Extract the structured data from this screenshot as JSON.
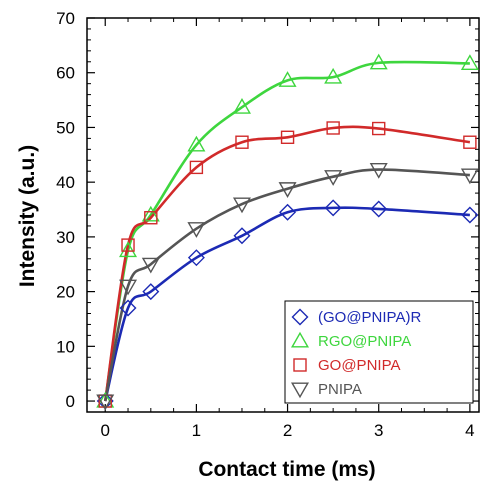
{
  "chart_data": {
    "type": "scatter",
    "title": "",
    "xlabel": "Contact time (ms)",
    "ylabel": "Intensity (a.u.)",
    "xlim": [
      -0.2,
      4.1
    ],
    "ylim": [
      -2,
      70
    ],
    "xticks": [
      0,
      1,
      2,
      3,
      4
    ],
    "yticks": [
      0,
      10,
      20,
      30,
      40,
      50,
      60,
      70
    ],
    "x": [
      0,
      0.25,
      0.5,
      1,
      1.5,
      2,
      2.5,
      3,
      4
    ],
    "grid": false,
    "legend_position": "bottom-right",
    "series": [
      {
        "name": "(GO@PNIPA)R",
        "marker": "diamond",
        "color": "#1c2ab4",
        "values": [
          0,
          17,
          20,
          26.2,
          30.2,
          34.5,
          35.3,
          35.1,
          34
        ]
      },
      {
        "name": "RGO@PNIPA",
        "marker": "triangle-up",
        "color": "#3ed63e",
        "values": [
          0,
          27.5,
          34,
          46.8,
          53.7,
          58.6,
          59.2,
          61.8,
          61.7
        ]
      },
      {
        "name": "GO@PNIPA",
        "marker": "square",
        "color": "#d12a2a",
        "values": [
          0,
          28.5,
          33.5,
          42.7,
          47.3,
          48.2,
          49.9,
          49.8,
          47.3
        ]
      },
      {
        "name": "PNIPA",
        "marker": "triangle-down",
        "color": "#555555",
        "values": [
          0,
          21,
          25,
          31.5,
          36,
          38.8,
          41,
          42.3,
          41.3
        ]
      }
    ]
  }
}
